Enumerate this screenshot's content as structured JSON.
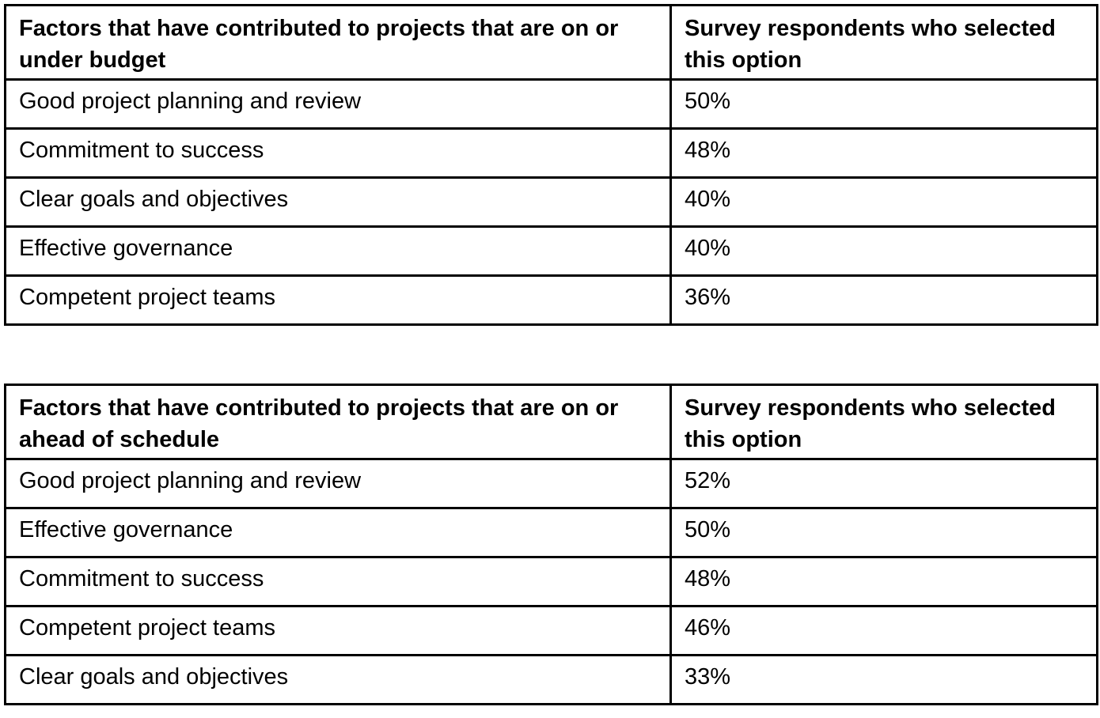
{
  "tables": [
    {
      "header": {
        "factor": "Factors that have contributed to projects that are on or under budget",
        "share": "Survey respondents who selected this option"
      },
      "rows": [
        {
          "factor": "Good project planning and review",
          "share": "50%"
        },
        {
          "factor": "Commitment to success",
          "share": "48%"
        },
        {
          "factor": "Clear goals and objectives",
          "share": "40%"
        },
        {
          "factor": "Effective governance",
          "share": "40%"
        },
        {
          "factor": "Competent project teams",
          "share": "36%"
        }
      ]
    },
    {
      "header": {
        "factor": "Factors that have contributed to projects that are on or ahead of schedule",
        "share": "Survey respondents who selected this option"
      },
      "rows": [
        {
          "factor": "Good project planning and review",
          "share": "52%"
        },
        {
          "factor": "Effective governance",
          "share": "50%"
        },
        {
          "factor": "Commitment to success",
          "share": "48%"
        },
        {
          "factor": "Competent project teams",
          "share": "46%"
        },
        {
          "factor": "Clear goals and objectives",
          "share": "33%"
        }
      ]
    }
  ]
}
